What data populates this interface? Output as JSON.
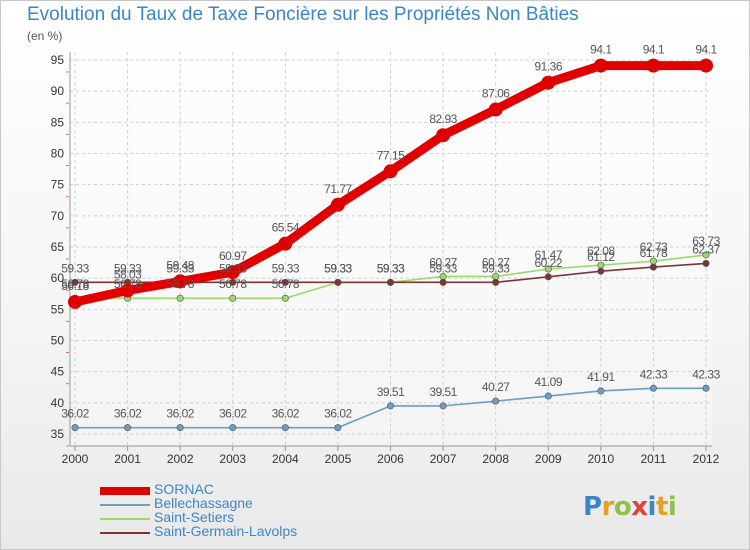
{
  "chart_data": {
    "type": "line",
    "title": "Evolution du Taux de Taxe Foncière sur les Propriétés Non Bâties",
    "unit_label": "(en %)",
    "ylim": [
      35,
      95
    ],
    "y_ticks": [
      "35",
      "40",
      "45",
      "50",
      "55",
      "60",
      "65",
      "70",
      "75",
      "80",
      "85",
      "90",
      "95"
    ],
    "categories": [
      "2000",
      "2001",
      "2002",
      "2003",
      "2004",
      "2005",
      "2006",
      "2007",
      "2008",
      "2009",
      "2010",
      "2011",
      "2012"
    ],
    "grid": true,
    "legend_position": "bottom-left",
    "series": [
      {
        "name": "SORNAC",
        "color": "#e00000",
        "values": [
          56.18,
          58.03,
          59.48,
          60.97,
          65.54,
          71.77,
          77.15,
          82.93,
          87.06,
          91.36,
          94.1,
          94.1,
          94.1
        ],
        "labels": [
          "56.18",
          "58.03",
          "59.48",
          "60.97",
          "65.54",
          "71.77",
          "77.15",
          "82.93",
          "87.06",
          "91.36",
          "94.1",
          "94.1",
          "94.1"
        ]
      },
      {
        "name": "Bellechassagne",
        "color": "#6d9cc5",
        "values": [
          36.02,
          36.02,
          36.02,
          36.02,
          36.02,
          36.02,
          39.51,
          39.51,
          40.27,
          41.09,
          41.91,
          42.33,
          42.33
        ],
        "labels": [
          "36.02",
          "36.02",
          "36.02",
          "36.02",
          "36.02",
          "36.02",
          "39.51",
          "39.51",
          "40.27",
          "41.09",
          "41.91",
          "42.33",
          "42.33"
        ]
      },
      {
        "name": "Saint-Setiers",
        "color": "#9bd96a",
        "values": [
          56.78,
          56.78,
          56.78,
          56.78,
          56.78,
          59.33,
          59.33,
          60.27,
          60.27,
          61.47,
          62.08,
          62.73,
          63.73
        ],
        "labels": [
          "56.78",
          "56.78",
          "56.78",
          "56.78",
          "56.78",
          "59.33",
          "59.33",
          "60.27",
          "60.27",
          "61.47",
          "62.08",
          "62.73",
          "63.73"
        ]
      },
      {
        "name": "Saint-Germain-Lavolps",
        "color": "#7a3535",
        "values": [
          59.33,
          59.33,
          59.33,
          59.33,
          59.33,
          59.33,
          59.33,
          59.33,
          59.33,
          60.22,
          61.12,
          61.78,
          62.37
        ],
        "labels": [
          "59.33",
          "59.33",
          "59.33",
          "59.33",
          "59.33",
          "59.33",
          "59.33",
          "59.33",
          "59.33",
          "60.22",
          "61.12",
          "61.78",
          "62.37"
        ]
      }
    ]
  },
  "logo": {
    "text": "Proxiti",
    "letters": [
      "P",
      "r",
      "o",
      "x",
      "i",
      "t",
      "i"
    ],
    "colors": [
      "#3a86c8",
      "#e8a020",
      "#8bc34a",
      "#e04040",
      "#3a86c8",
      "#e8a020",
      "#8bc34a"
    ]
  }
}
